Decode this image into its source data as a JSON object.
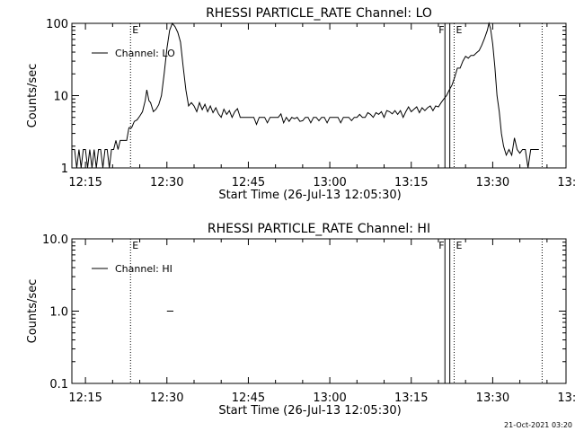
{
  "footer": {
    "timestamp": "21-Oct-2021 03:20"
  },
  "chart_data": [
    {
      "type": "line",
      "title": "RHESSI PARTICLE_RATE Channel: LO",
      "xlabel": "Start Time (26-Jul-13 12:05:30)",
      "ylabel": "Counts/sec",
      "yscale": "log",
      "ylim": [
        1,
        100
      ],
      "xlim_minutes": [
        12.5,
        103.5
      ],
      "xticks": [
        {
          "label": "12:15",
          "x": 15
        },
        {
          "label": "12:30",
          "x": 30
        },
        {
          "label": "12:45",
          "x": 45
        },
        {
          "label": "13:00",
          "x": 60
        },
        {
          "label": "13:15",
          "x": 75
        },
        {
          "label": "13:30",
          "x": 90
        },
        {
          "label": "13:45",
          "x": 105
        }
      ],
      "yticks": [
        {
          "label": "1",
          "y": 1
        },
        {
          "label": "10",
          "y": 10
        },
        {
          "label": "100",
          "y": 100
        }
      ],
      "legend": {
        "label": "Channel: LO",
        "position": "top-left"
      },
      "markers": [
        {
          "x": 23.3,
          "label": "E",
          "style": "dotted"
        },
        {
          "x": 81.2,
          "label": "F",
          "style": "solid"
        },
        {
          "x": 82.1,
          "label": "",
          "style": "solid"
        },
        {
          "x": 82.9,
          "label": "E",
          "style": "dotted"
        },
        {
          "x": 99.1,
          "label": "",
          "style": "dotted"
        }
      ],
      "series": [
        {
          "name": "Channel: LO",
          "segments": [
            [
              [
                12.5,
                1.8
              ],
              [
                13.0,
                1.8
              ],
              [
                13.4,
                1.0
              ],
              [
                13.8,
                1.8
              ],
              [
                14.2,
                1.0
              ],
              [
                14.6,
                1.8
              ],
              [
                15.0,
                1.8
              ],
              [
                15.4,
                1.0
              ],
              [
                15.8,
                1.8
              ],
              [
                16.2,
                1.0
              ],
              [
                16.6,
                1.8
              ],
              [
                17.0,
                1.0
              ],
              [
                17.4,
                1.8
              ],
              [
                17.8,
                1.8
              ],
              [
                18.2,
                1.0
              ],
              [
                18.6,
                1.8
              ],
              [
                19.0,
                1.8
              ],
              [
                19.4,
                1.0
              ],
              [
                19.8,
                1.8
              ],
              [
                20.2,
                1.8
              ],
              [
                20.6,
                2.4
              ],
              [
                21.0,
                1.8
              ],
              [
                21.4,
                2.4
              ],
              [
                21.8,
                2.4
              ],
              [
                22.2,
                2.4
              ],
              [
                22.6,
                2.4
              ],
              [
                23.0,
                3.6
              ],
              [
                23.5,
                3.6
              ],
              [
                24.0,
                4.4
              ],
              [
                24.5,
                4.6
              ],
              [
                25.0,
                5.2
              ],
              [
                25.5,
                6.0
              ],
              [
                26.0,
                8.5
              ],
              [
                26.3,
                12.0
              ],
              [
                26.7,
                8.5
              ],
              [
                27.0,
                8.0
              ],
              [
                27.5,
                6.0
              ],
              [
                28.0,
                6.5
              ],
              [
                28.5,
                7.5
              ],
              [
                29.0,
                10.0
              ],
              [
                29.5,
                20.0
              ],
              [
                30.0,
                45.0
              ],
              [
                30.5,
                80.0
              ],
              [
                31.0,
                100.0
              ],
              [
                31.5,
                90.0
              ],
              [
                32.0,
                75.0
              ],
              [
                32.5,
                55.0
              ],
              [
                33.0,
                25.0
              ],
              [
                33.5,
                12.0
              ],
              [
                34.0,
                7.2
              ],
              [
                34.5,
                8.0
              ],
              [
                35.0,
                7.2
              ],
              [
                35.5,
                6.0
              ],
              [
                36.0,
                8.0
              ],
              [
                36.5,
                6.4
              ],
              [
                37.0,
                7.6
              ],
              [
                37.5,
                6.0
              ],
              [
                38.0,
                7.2
              ],
              [
                38.5,
                5.8
              ],
              [
                39.0,
                6.8
              ],
              [
                39.5,
                5.6
              ],
              [
                40.0,
                5.0
              ],
              [
                40.5,
                6.5
              ],
              [
                41.0,
                5.5
              ],
              [
                41.5,
                6.2
              ],
              [
                42.0,
                5.0
              ],
              [
                42.5,
                6.0
              ],
              [
                43.0,
                6.6
              ],
              [
                43.5,
                5.0
              ],
              [
                44.0,
                5.0
              ],
              [
                44.5,
                5.0
              ],
              [
                45.0,
                5.0
              ],
              [
                45.5,
                5.0
              ],
              [
                46.0,
                5.0
              ],
              [
                46.5,
                4.0
              ],
              [
                47.0,
                5.0
              ],
              [
                47.5,
                5.0
              ],
              [
                48.0,
                5.0
              ],
              [
                48.5,
                4.2
              ],
              [
                49.0,
                5.0
              ],
              [
                49.5,
                5.0
              ],
              [
                50.0,
                5.0
              ],
              [
                50.5,
                5.0
              ],
              [
                51.0,
                5.6
              ],
              [
                51.5,
                4.2
              ],
              [
                52.0,
                5.0
              ],
              [
                52.5,
                4.4
              ],
              [
                53.0,
                5.0
              ],
              [
                53.5,
                4.8
              ],
              [
                54.0,
                5.0
              ],
              [
                54.5,
                4.4
              ],
              [
                55.0,
                4.5
              ],
              [
                55.5,
                5.0
              ],
              [
                56.0,
                5.0
              ],
              [
                56.5,
                4.2
              ],
              [
                57.0,
                5.0
              ],
              [
                57.5,
                5.0
              ],
              [
                58.0,
                4.5
              ],
              [
                58.5,
                5.0
              ],
              [
                59.0,
                5.0
              ],
              [
                59.5,
                4.2
              ],
              [
                60.0,
                5.0
              ],
              [
                60.5,
                5.0
              ],
              [
                61.0,
                5.0
              ],
              [
                61.5,
                5.0
              ],
              [
                62.0,
                4.2
              ],
              [
                62.5,
                5.0
              ],
              [
                63.0,
                5.0
              ],
              [
                63.5,
                5.0
              ],
              [
                64.0,
                4.5
              ],
              [
                64.5,
                5.0
              ],
              [
                65.0,
                5.0
              ],
              [
                65.5,
                5.5
              ],
              [
                66.0,
                5.0
              ],
              [
                66.5,
                5.0
              ],
              [
                67.0,
                5.8
              ],
              [
                67.5,
                5.5
              ],
              [
                68.0,
                5.0
              ],
              [
                68.5,
                5.8
              ],
              [
                69.0,
                5.5
              ],
              [
                69.5,
                6.0
              ],
              [
                70.0,
                5.0
              ],
              [
                70.5,
                6.2
              ],
              [
                71.0,
                6.0
              ],
              [
                71.5,
                5.6
              ],
              [
                72.0,
                6.2
              ],
              [
                72.5,
                5.5
              ],
              [
                73.0,
                6.2
              ],
              [
                73.5,
                5.0
              ],
              [
                74.0,
                6.0
              ],
              [
                74.5,
                7.0
              ],
              [
                75.0,
                6.0
              ],
              [
                75.5,
                6.5
              ],
              [
                76.0,
                7.0
              ],
              [
                76.5,
                5.8
              ],
              [
                77.0,
                6.8
              ],
              [
                77.5,
                6.2
              ],
              [
                78.0,
                6.8
              ],
              [
                78.5,
                7.2
              ],
              [
                79.0,
                6.2
              ],
              [
                79.5,
                7.2
              ],
              [
                80.0,
                7.0
              ],
              [
                80.5,
                8.0
              ],
              [
                81.0,
                9.0
              ],
              [
                81.5,
                10.0
              ],
              [
                82.0,
                12.0
              ],
              [
                82.5,
                14.0
              ],
              [
                83.0,
                18.0
              ],
              [
                83.5,
                24.0
              ],
              [
                84.0,
                24.0
              ],
              [
                84.5,
                30.0
              ],
              [
                85.0,
                35.0
              ],
              [
                85.5,
                33.0
              ],
              [
                86.0,
                36.0
              ],
              [
                86.5,
                36.0
              ],
              [
                87.0,
                39.0
              ],
              [
                87.5,
                42.0
              ],
              [
                88.0,
                50.0
              ],
              [
                88.5,
                62.0
              ],
              [
                89.0,
                80.0
              ],
              [
                89.3,
                100.0
              ],
              [
                89.6,
                85.0
              ],
              [
                90.0,
                52.0
              ],
              [
                90.4,
                25.0
              ],
              [
                90.8,
                10.0
              ],
              [
                91.2,
                6.0
              ],
              [
                91.6,
                3.0
              ],
              [
                92.0,
                2.0
              ],
              [
                92.5,
                1.5
              ],
              [
                93.0,
                1.8
              ],
              [
                93.5,
                1.5
              ],
              [
                94.0,
                2.6
              ],
              [
                94.5,
                1.8
              ],
              [
                95.0,
                1.6
              ],
              [
                95.5,
                1.8
              ],
              [
                96.0,
                1.8
              ],
              [
                96.5,
                1.0
              ],
              [
                97.0,
                1.8
              ],
              [
                97.5,
                1.8
              ],
              [
                98.5,
                1.8
              ]
            ]
          ]
        }
      ]
    },
    {
      "type": "line",
      "title": "RHESSI PARTICLE_RATE Channel: HI",
      "xlabel": "Start Time (26-Jul-13 12:05:30)",
      "ylabel": "Counts/sec",
      "yscale": "log",
      "ylim": [
        0.1,
        10
      ],
      "xlim_minutes": [
        12.5,
        103.5
      ],
      "xticks": [
        {
          "label": "12:15",
          "x": 15
        },
        {
          "label": "12:30",
          "x": 30
        },
        {
          "label": "12:45",
          "x": 45
        },
        {
          "label": "13:00",
          "x": 60
        },
        {
          "label": "13:15",
          "x": 75
        },
        {
          "label": "13:30",
          "x": 90
        },
        {
          "label": "13:45",
          "x": 105
        }
      ],
      "yticks": [
        {
          "label": "0.1",
          "y": 0.1
        },
        {
          "label": "1.0",
          "y": 1
        },
        {
          "label": "10.0",
          "y": 10
        }
      ],
      "legend": {
        "label": "Channel: HI",
        "position": "top-left"
      },
      "markers": [
        {
          "x": 23.3,
          "label": "E",
          "style": "dotted"
        },
        {
          "x": 81.2,
          "label": "F",
          "style": "solid"
        },
        {
          "x": 82.1,
          "label": "",
          "style": "solid"
        },
        {
          "x": 82.9,
          "label": "E",
          "style": "dotted"
        },
        {
          "x": 99.1,
          "label": "",
          "style": "dotted"
        }
      ],
      "series": [
        {
          "name": "Channel: HI",
          "segments": [
            [
              [
                30.0,
                1.0
              ],
              [
                31.2,
                1.0
              ]
            ]
          ]
        }
      ]
    }
  ]
}
